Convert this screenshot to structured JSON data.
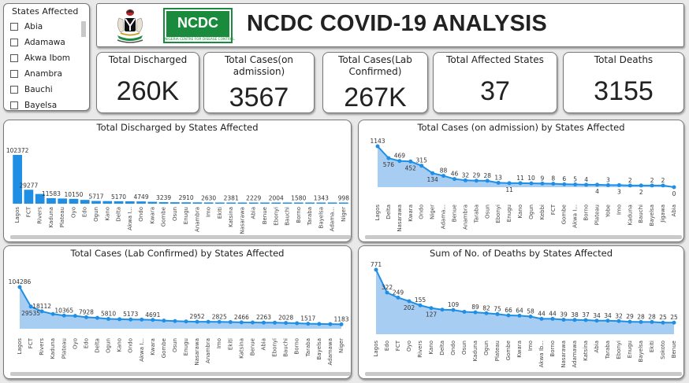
{
  "header": {
    "title": "NCDC COVID-19 ANALYSIS",
    "logo_text": "NCDC",
    "logo_subtext": "NIGERIA CENTRE FOR DISEASE CONTROL"
  },
  "slicer": {
    "title": "States Affected",
    "items": [
      "Abia",
      "Adamawa",
      "Akwa Ibom",
      "Anambra",
      "Bauchi",
      "Bayelsa"
    ]
  },
  "kpis": [
    {
      "label": "Total Discharged",
      "value": "260K"
    },
    {
      "label": "Total Cases(on admission)",
      "value": "3567"
    },
    {
      "label": "Total Cases(Lab Confirmed)",
      "value": "267K"
    },
    {
      "label": "Total Affected States",
      "value": "37"
    },
    {
      "label": "Total Deaths",
      "value": "3155"
    }
  ],
  "colors": {
    "accent": "#1f8fe6",
    "area": "#a8cdf2",
    "nig_green": "#1a8a3c"
  },
  "chart_data": [
    {
      "type": "bar",
      "title": "Total Discharged by States Affected",
      "categories": [
        "Lagos",
        "FCT",
        "Rivers",
        "Kaduna",
        "Plateau",
        "Oyo",
        "Edo",
        "Ogun",
        "Kano",
        "Delta",
        "Akwa I...",
        "Ondo",
        "Kwara",
        "Gombe",
        "Osun",
        "Enugu",
        "Anambra",
        "Imo",
        "Ekiti",
        "Katsina",
        "Nasarawa",
        "Abia",
        "Benue",
        "Ebonyi",
        "Bauchi",
        "Borno",
        "Taraba",
        "Bayelsa",
        "Adama...",
        "Niger"
      ],
      "values": [
        102372,
        29277,
        null,
        11583,
        null,
        10150,
        null,
        5717,
        null,
        5170,
        null,
        4749,
        null,
        3239,
        null,
        2910,
        null,
        2630,
        null,
        2381,
        null,
        2229,
        null,
        2004,
        null,
        1580,
        null,
        1343,
        null,
        998
      ],
      "ylim": [
        0,
        102372
      ]
    },
    {
      "type": "area",
      "title": "Total Cases (on admission) by States Affected",
      "categories": [
        "Lagos",
        "Delta",
        "Nasarawa",
        "Kwara",
        "Ondo",
        "Niger",
        "Adama...",
        "Benue",
        "Anambra",
        "Taraba",
        "Osun",
        "Ebonyi",
        "Enugu",
        "Kano",
        "Ogun",
        "Kebbi",
        "FCT",
        "Gombe",
        "Akwa I...",
        "Borno",
        "Plateau",
        "Yobe",
        "Imo",
        "Kaduna",
        "Bauchi",
        "Bayelsa",
        "Jigawa",
        "Abia"
      ],
      "values": [
        1143,
        576,
        469,
        452,
        315,
        134,
        88,
        46,
        32,
        29,
        28,
        13,
        11,
        11,
        10,
        9,
        8,
        6,
        5,
        4,
        4,
        3,
        3,
        2,
        2,
        2,
        2,
        0
      ],
      "labels": [
        "1143",
        "576",
        "469",
        "452",
        "315",
        "134",
        "88",
        "46",
        "32",
        "29",
        "28",
        "13",
        "11",
        "11",
        "10",
        "9",
        "8",
        "6",
        "5",
        "4",
        "4",
        "3",
        "3",
        "2",
        "2",
        "2",
        "2",
        "0"
      ],
      "label_below": [
        false,
        true,
        false,
        true,
        false,
        true,
        false,
        false,
        false,
        false,
        false,
        false,
        true,
        false,
        false,
        false,
        false,
        false,
        false,
        false,
        true,
        false,
        true,
        false,
        true,
        false,
        false,
        true
      ]
    },
    {
      "type": "area",
      "title": "Total Cases (Lab Confirmed) by States Affected",
      "categories": [
        "Lagos",
        "FCT",
        "Rivers",
        "Kaduna",
        "Plateau",
        "Oyo",
        "Edo",
        "Delta",
        "Ogun",
        "Kano",
        "Ondo",
        "Akwa I...",
        "Kwara",
        "Gombe",
        "Osun",
        "Enugu",
        "Nasarawa",
        "Anambra",
        "Imo",
        "Ekiti",
        "Katsina",
        "Benue",
        "Abia",
        "Ebonyi",
        "Bauchi",
        "Borno",
        "Taraba",
        "Bayelsa",
        "Adamawa",
        "Niger"
      ],
      "values": [
        104286,
        29535,
        18112,
        13000,
        10365,
        10000,
        7928,
        7100,
        5810,
        5500,
        5173,
        5000,
        4691,
        4000,
        3500,
        3200,
        2952,
        2900,
        2825,
        2700,
        2466,
        2400,
        2263,
        2200,
        2028,
        1800,
        1517,
        1400,
        1300,
        1183
      ],
      "labels": [
        "104286",
        "29535",
        "18112",
        "",
        "10365",
        "",
        "7928",
        "",
        "5810",
        "",
        "5173",
        "",
        "4691",
        "",
        "",
        "",
        "2952",
        "",
        "2825",
        "",
        "2466",
        "",
        "2263",
        "",
        "2028",
        "",
        "1517",
        "",
        "",
        "1183"
      ],
      "label_below": [
        false,
        true,
        false,
        false,
        false,
        false,
        false,
        false,
        false,
        false,
        false,
        false,
        false,
        false,
        false,
        false,
        false,
        false,
        false,
        false,
        false,
        false,
        false,
        false,
        false,
        false,
        false,
        false,
        false,
        false
      ]
    },
    {
      "type": "area",
      "title": "Sum of No. of Deaths by States Affected",
      "categories": [
        "Lagos",
        "Edo",
        "FCT",
        "Oyo",
        "Rivers",
        "Kano",
        "Delta",
        "Ondo",
        "Osun",
        "Kaduna",
        "Ogun",
        "Plateau",
        "Gombe",
        "Kwara",
        "Imo",
        "Akwa Ib...",
        "Borno",
        "Nasarawa",
        "Adamawa",
        "Katsina",
        "Abia",
        "Taraba",
        "Ebonyi",
        "Enugu",
        "Bayelsa",
        "Ekiti",
        "Sokoto",
        "Benue"
      ],
      "values": [
        771,
        322,
        249,
        202,
        155,
        127,
        112,
        109,
        93,
        89,
        82,
        75,
        66,
        64,
        58,
        44,
        44,
        39,
        38,
        37,
        34,
        34,
        32,
        29,
        28,
        28,
        25,
        25
      ],
      "labels": [
        "771",
        "322",
        "249",
        "202",
        "155",
        "127",
        "",
        "109",
        "",
        "89",
        "82",
        "75",
        "66",
        "64",
        "58",
        "44",
        "44",
        "39",
        "38",
        "37",
        "34",
        "34",
        "32",
        "29",
        "28",
        "28",
        "25",
        "25"
      ],
      "label_below": [
        false,
        false,
        false,
        true,
        false,
        true,
        false,
        false,
        false,
        false,
        false,
        false,
        false,
        false,
        false,
        false,
        false,
        false,
        false,
        false,
        false,
        false,
        false,
        false,
        false,
        false,
        false,
        false
      ]
    }
  ]
}
